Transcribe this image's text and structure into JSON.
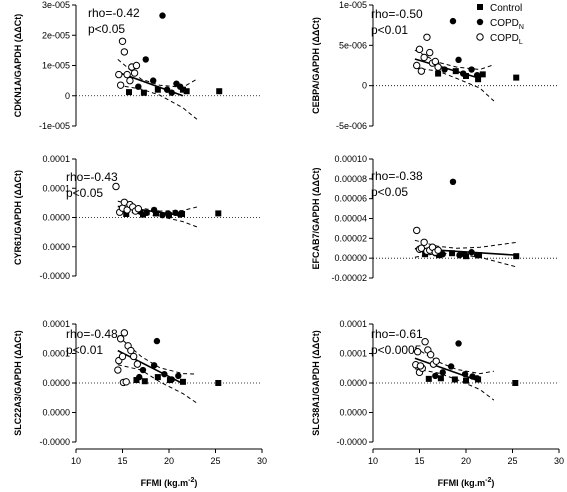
{
  "figure": {
    "xlabel": "FFMI (kg.m",
    "xlabel_sup": "-2",
    "xlabel_end": ")",
    "legend": [
      {
        "label": "Control",
        "sub": "",
        "marker": "square"
      },
      {
        "label": "COPD",
        "sub": "N",
        "marker": "filled-circle"
      },
      {
        "label": "COPD",
        "sub": "L",
        "marker": "open-circle"
      }
    ]
  },
  "chart_data": [
    {
      "type": "scatter",
      "ylabel": "CDKN1A/GAPDH (ΔΔCt)",
      "stat1": "rho=-0.42",
      "stat2": "p<0.05",
      "yticks": [
        "3e-005",
        "2e-005",
        "1e-005",
        "0",
        "-1e-005"
      ],
      "ytick_values": [
        3,
        2,
        1,
        0,
        -1
      ],
      "ylim": [
        -1,
        3
      ],
      "xlim": [
        10,
        30
      ],
      "series": [
        {
          "name": "Control",
          "marker": "square",
          "points": [
            [
              15.7,
              0.12
            ],
            [
              17.3,
              0.1
            ],
            [
              18.8,
              0.2
            ],
            [
              21.5,
              0.2
            ],
            [
              21.9,
              0.15
            ],
            [
              25.4,
              0.15
            ]
          ]
        },
        {
          "name": "COPDN",
          "marker": "filled-circle",
          "points": [
            [
              16.7,
              0.3
            ],
            [
              17.5,
              1.2
            ],
            [
              18.3,
              0.5
            ],
            [
              19.3,
              2.65
            ],
            [
              19.8,
              0.2
            ],
            [
              20.3,
              0.1
            ],
            [
              20.8,
              0.4
            ],
            [
              21.2,
              0.3
            ]
          ]
        },
        {
          "name": "COPDL",
          "marker": "open-circle",
          "points": [
            [
              14.6,
              0.7
            ],
            [
              14.8,
              0.35
            ],
            [
              15.0,
              1.8
            ],
            [
              15.2,
              1.45
            ],
            [
              15.5,
              0.7
            ],
            [
              15.8,
              0.5
            ],
            [
              16.0,
              0.95
            ],
            [
              16.3,
              0.75
            ],
            [
              16.5,
              1.0
            ]
          ]
        }
      ],
      "fit": [
        [
          14.5,
          0.78
        ],
        [
          21.5,
          0.0
        ]
      ],
      "ci_upper": [
        [
          14.5,
          1.2
        ],
        [
          17.0,
          0.55
        ],
        [
          19.0,
          0.35
        ],
        [
          21.5,
          0.28
        ],
        [
          23.0,
          0.55
        ]
      ],
      "ci_lower": [
        [
          14.5,
          0.35
        ],
        [
          17.0,
          0.22
        ],
        [
          19.0,
          0.02
        ],
        [
          21.5,
          -0.4
        ],
        [
          23.0,
          -0.78
        ]
      ]
    },
    {
      "type": "scatter",
      "ylabel": "CEBPA/GAPDH (ΔΔCt)",
      "stat1": "rho=-0.50",
      "stat2": "p<0.01",
      "yticks": [
        "1e-005",
        "5e-006",
        "0",
        "-5e-006"
      ],
      "ytick_values": [
        10,
        5,
        0,
        -5
      ],
      "ylim": [
        -5,
        10
      ],
      "xlim": [
        10,
        30
      ],
      "series": [
        {
          "name": "Control",
          "marker": "square",
          "points": [
            [
              17.0,
              1.5
            ],
            [
              18.9,
              1.8
            ],
            [
              20.0,
              1.2
            ],
            [
              21.3,
              0.8
            ],
            [
              21.8,
              1.4
            ],
            [
              25.4,
              1.0
            ]
          ]
        },
        {
          "name": "COPDN",
          "marker": "filled-circle",
          "points": [
            [
              16.8,
              2.8
            ],
            [
              17.7,
              2.0
            ],
            [
              18.6,
              8.0
            ],
            [
              19.2,
              3.2
            ],
            [
              19.7,
              1.5
            ],
            [
              20.6,
              2.0
            ],
            [
              21.2,
              1.3
            ]
          ]
        },
        {
          "name": "COPDL",
          "marker": "open-circle",
          "points": [
            [
              14.7,
              2.5
            ],
            [
              15.0,
              4.5
            ],
            [
              15.2,
              1.8
            ],
            [
              15.5,
              3.5
            ],
            [
              15.8,
              6.0
            ],
            [
              16.1,
              4.1
            ],
            [
              16.4,
              2.8
            ],
            [
              16.7,
              3.0
            ],
            [
              17.0,
              2.3
            ]
          ]
        }
      ],
      "fit": [
        [
          14.5,
          3.3
        ],
        [
          21.5,
          0.9
        ]
      ],
      "ci_upper": [
        [
          14.5,
          4.4
        ],
        [
          17.0,
          2.9
        ],
        [
          19.0,
          2.3
        ],
        [
          21.5,
          2.0
        ],
        [
          23.0,
          2.6
        ]
      ],
      "ci_lower": [
        [
          14.5,
          2.2
        ],
        [
          17.0,
          1.8
        ],
        [
          19.0,
          0.9
        ],
        [
          21.5,
          -0.3
        ],
        [
          23.0,
          -1.9
        ]
      ]
    },
    {
      "type": "scatter",
      "ylabel": "CYR61/GAPDH (ΔΔCt)",
      "stat1": "rho=-0.43",
      "stat2": "p<0.05",
      "yticks": [
        "0.0001",
        "0.0001",
        "0.0000",
        "0.0000",
        "-0.0000"
      ],
      "ytick_values": [
        10,
        5,
        0,
        -5,
        -10
      ],
      "ylim": [
        -10,
        10
      ],
      "xlim": [
        10,
        30
      ],
      "series": [
        {
          "name": "Control",
          "marker": "square",
          "points": [
            [
              15.4,
              0.6
            ],
            [
              17.2,
              0.5
            ],
            [
              18.6,
              0.7
            ],
            [
              20.0,
              0.4
            ],
            [
              21.4,
              0.6
            ],
            [
              25.3,
              0.7
            ]
          ]
        },
        {
          "name": "COPDN",
          "marker": "filled-circle",
          "points": [
            [
              16.9,
              1.0
            ],
            [
              17.6,
              0.8
            ],
            [
              18.4,
              1.3
            ],
            [
              19.3,
              0.4
            ],
            [
              19.9,
              0.7
            ],
            [
              20.7,
              0.8
            ],
            [
              21.2,
              0.5
            ]
          ]
        },
        {
          "name": "COPDL",
          "marker": "open-circle",
          "points": [
            [
              14.3,
              5.3
            ],
            [
              14.7,
              0.9
            ],
            [
              15.0,
              1.6
            ],
            [
              15.2,
              2.6
            ],
            [
              15.5,
              1.3
            ],
            [
              15.8,
              2.2
            ],
            [
              16.1,
              1.8
            ],
            [
              16.4,
              1.1
            ],
            [
              16.7,
              1.5
            ]
          ]
        }
      ],
      "fit": [
        [
          14.5,
          1.9
        ],
        [
          21.5,
          0.3
        ]
      ],
      "ci_upper": [
        [
          14.5,
          2.8
        ],
        [
          17.0,
          1.6
        ],
        [
          19.0,
          1.1
        ],
        [
          21.5,
          1.2
        ],
        [
          23.0,
          1.8
        ]
      ],
      "ci_lower": [
        [
          14.5,
          1.0
        ],
        [
          17.0,
          0.7
        ],
        [
          19.0,
          0.2
        ],
        [
          21.5,
          -0.7
        ],
        [
          23.0,
          -1.6
        ]
      ]
    },
    {
      "type": "scatter",
      "ylabel": "EFCAB7/GAPDH (ΔΔCt)",
      "stat1": "rho=-0.38",
      "stat2": "p<0.05",
      "yticks": [
        "0.00010",
        "0.00008",
        "0.00006",
        "0.00004",
        "0.00002",
        "0.00000",
        "-0.00002"
      ],
      "ytick_values": [
        10,
        8,
        6,
        4,
        2,
        0,
        -2
      ],
      "ylim": [
        -2,
        10
      ],
      "xlim": [
        10,
        30
      ],
      "series": [
        {
          "name": "Control",
          "marker": "square",
          "points": [
            [
              15.6,
              0.4
            ],
            [
              17.1,
              0.3
            ],
            [
              18.5,
              0.5
            ],
            [
              20.0,
              0.2
            ],
            [
              21.4,
              0.3
            ],
            [
              25.4,
              0.2
            ]
          ]
        },
        {
          "name": "COPDN",
          "marker": "filled-circle",
          "points": [
            [
              16.7,
              0.5
            ],
            [
              17.5,
              0.4
            ],
            [
              18.6,
              7.7
            ],
            [
              19.3,
              0.3
            ],
            [
              19.8,
              0.4
            ],
            [
              20.6,
              0.6
            ],
            [
              21.2,
              0.3
            ]
          ]
        },
        {
          "name": "COPDL",
          "marker": "open-circle",
          "points": [
            [
              14.7,
              2.8
            ],
            [
              15.0,
              0.9
            ],
            [
              15.2,
              1.0
            ],
            [
              15.5,
              1.6
            ],
            [
              15.8,
              0.7
            ],
            [
              16.1,
              0.8
            ],
            [
              16.4,
              1.1
            ],
            [
              16.7,
              0.6
            ],
            [
              17.0,
              0.8
            ]
          ]
        }
      ],
      "fit": [
        [
          14.5,
          0.95
        ],
        [
          25.5,
          0.3
        ]
      ],
      "ci_upper": [
        [
          14.5,
          1.8
        ],
        [
          17.0,
          1.2
        ],
        [
          19.0,
          1.0
        ],
        [
          21.5,
          1.1
        ],
        [
          25.5,
          1.6
        ]
      ],
      "ci_lower": [
        [
          14.5,
          0.1
        ],
        [
          17.0,
          0.5
        ],
        [
          19.0,
          0.4
        ],
        [
          21.5,
          0.1
        ],
        [
          25.5,
          -0.9
        ]
      ]
    },
    {
      "type": "scatter",
      "ylabel": "SLC22A3/GAPDH (ΔΔCt)",
      "stat1": "rho=-0.48",
      "stat2": "p<0.01",
      "yticks": [
        "0.0001",
        "0.0001",
        "0.0000",
        "0.0000",
        "-0.0000"
      ],
      "ytick_values": [
        10,
        5,
        0,
        -5,
        -10
      ],
      "ylim": [
        -10,
        10
      ],
      "xlim": [
        10,
        30
      ],
      "series": [
        {
          "name": "Control",
          "marker": "square",
          "points": [
            [
              16.5,
              0.5
            ],
            [
              17.4,
              0.3
            ],
            [
              18.8,
              1.0
            ],
            [
              20.1,
              0.5
            ],
            [
              21.5,
              0.2
            ],
            [
              25.3,
              0.0
            ]
          ]
        },
        {
          "name": "COPDN",
          "marker": "filled-circle",
          "points": [
            [
              16.8,
              1.0
            ],
            [
              17.2,
              2.2
            ],
            [
              18.4,
              3.0
            ],
            [
              18.7,
              7.1
            ],
            [
              19.5,
              1.5
            ],
            [
              20.3,
              0.6
            ],
            [
              21.0,
              1.2
            ]
          ]
        },
        {
          "name": "COPDL",
          "marker": "open-circle",
          "points": [
            [
              14.5,
              2.2
            ],
            [
              14.6,
              3.8
            ],
            [
              14.8,
              7.5
            ],
            [
              15.0,
              4.5
            ],
            [
              15.1,
              0.1
            ],
            [
              15.4,
              0.2
            ],
            [
              15.6,
              6.3
            ],
            [
              15.9,
              5.5
            ],
            [
              16.2,
              4.5
            ],
            [
              16.6,
              3.2
            ],
            [
              15.2,
              8.5
            ]
          ]
        }
      ],
      "fit": [
        [
          14.5,
          5.5
        ],
        [
          21.5,
          -0.1
        ]
      ],
      "ci_upper": [
        [
          14.5,
          8.0
        ],
        [
          17.0,
          4.5
        ],
        [
          19.0,
          2.6
        ],
        [
          21.5,
          1.6
        ],
        [
          23.0,
          1.5
        ]
      ],
      "ci_lower": [
        [
          14.5,
          3.1
        ],
        [
          17.0,
          2.2
        ],
        [
          19.0,
          0.2
        ],
        [
          21.5,
          -1.8
        ],
        [
          23.0,
          -3.4
        ]
      ]
    },
    {
      "type": "scatter",
      "ylabel": "SLC38A1/GAPDH (ΔΔCt)",
      "stat1": "rho=-0.61",
      "stat2": "p<0.0005",
      "yticks": [
        "0.0001",
        "0.0001",
        "0.0000",
        "0.0000",
        "-0.0000"
      ],
      "ytick_values": [
        10,
        5,
        0,
        -5,
        -10
      ],
      "ylim": [
        -10,
        10
      ],
      "xlim": [
        10,
        30
      ],
      "series": [
        {
          "name": "Control",
          "marker": "square",
          "points": [
            [
              16.0,
              0.7
            ],
            [
              17.3,
              0.8
            ],
            [
              18.8,
              0.6
            ],
            [
              20.0,
              0.4
            ],
            [
              21.3,
              0.6
            ],
            [
              25.3,
              0.0
            ]
          ]
        },
        {
          "name": "COPDN",
          "marker": "filled-circle",
          "points": [
            [
              16.7,
              1.2
            ],
            [
              17.5,
              1.8
            ],
            [
              18.4,
              2.8
            ],
            [
              19.2,
              6.7
            ],
            [
              19.9,
              1.5
            ],
            [
              20.7,
              1.1
            ],
            [
              21.2,
              0.8
            ]
          ]
        },
        {
          "name": "COPDL",
          "marker": "open-circle",
          "points": [
            [
              14.6,
              3.1
            ],
            [
              14.8,
              5.3
            ],
            [
              15.0,
              1.8
            ],
            [
              15.3,
              2.5
            ],
            [
              15.6,
              7.0
            ],
            [
              15.9,
              5.6
            ],
            [
              16.2,
              4.8
            ],
            [
              16.5,
              3.2
            ],
            [
              16.8,
              3.7
            ],
            [
              15.1,
              2.9
            ]
          ]
        }
      ],
      "fit": [
        [
          14.5,
          4.2
        ],
        [
          21.5,
          0.3
        ]
      ],
      "ci_upper": [
        [
          14.5,
          6.0
        ],
        [
          17.0,
          3.6
        ],
        [
          19.0,
          2.3
        ],
        [
          21.5,
          1.6
        ],
        [
          23.0,
          2.0
        ]
      ],
      "ci_lower": [
        [
          14.5,
          2.4
        ],
        [
          17.0,
          1.7
        ],
        [
          19.0,
          0.6
        ],
        [
          21.5,
          -1.1
        ],
        [
          23.0,
          -2.9
        ]
      ]
    }
  ]
}
